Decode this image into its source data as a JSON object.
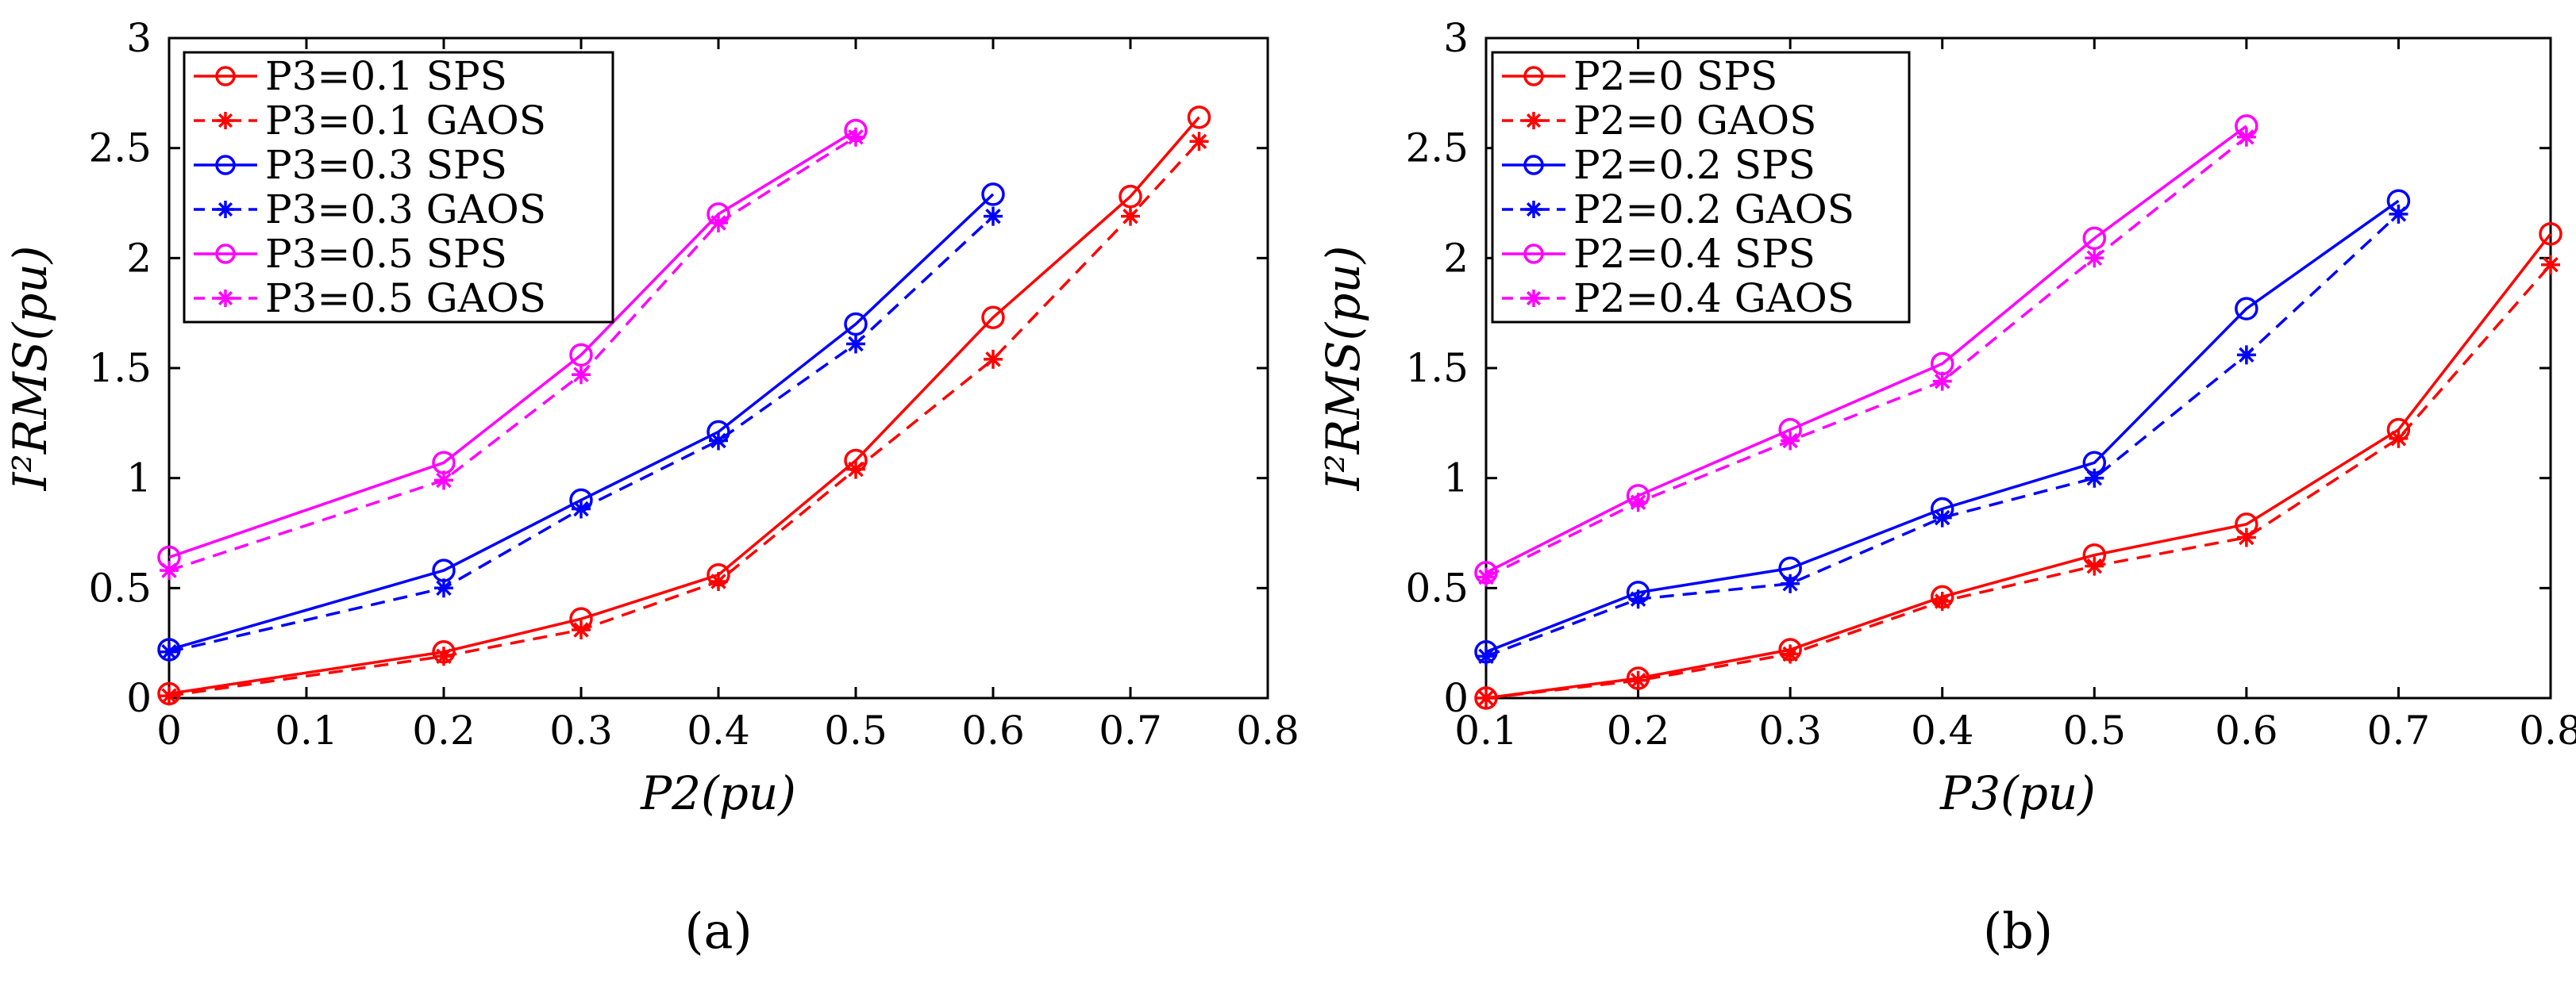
{
  "chart_data": [
    {
      "type": "line",
      "panel_label": "(a)",
      "xlabel": "P2(pu)",
      "ylabel": "I²RMS(pu)",
      "xlim": [
        0,
        0.8
      ],
      "ylim": [
        0,
        3
      ],
      "xticks": [
        "0",
        "0.1",
        "0.2",
        "0.3",
        "0.4",
        "0.5",
        "0.6",
        "0.7",
        "0.8"
      ],
      "yticks": [
        "0",
        "0.5",
        "1",
        "1.5",
        "2",
        "2.5",
        "3"
      ],
      "grid": false,
      "legend_position": "top-left",
      "series": [
        {
          "name": "P3=0.1  SPS",
          "color": "#ff0000",
          "dash": "solid",
          "marker": "circle",
          "x": [
            0,
            0.2,
            0.3,
            0.4,
            0.5,
            0.6,
            0.7,
            0.75
          ],
          "y": [
            0.02,
            0.21,
            0.36,
            0.56,
            1.08,
            1.73,
            2.28,
            2.64
          ]
        },
        {
          "name": "P3=0.1  GAOS",
          "color": "#ff0000",
          "dash": "dashed",
          "marker": "star",
          "x": [
            0,
            0.2,
            0.3,
            0.4,
            0.5,
            0.6,
            0.7,
            0.75
          ],
          "y": [
            0.01,
            0.19,
            0.31,
            0.53,
            1.04,
            1.54,
            2.19,
            2.53
          ]
        },
        {
          "name": "P3=0.3  SPS",
          "color": "#0000ff",
          "dash": "solid",
          "marker": "circle",
          "x": [
            0,
            0.2,
            0.3,
            0.4,
            0.5,
            0.6
          ],
          "y": [
            0.22,
            0.58,
            0.9,
            1.21,
            1.7,
            2.29
          ]
        },
        {
          "name": "P3=0.3  GAOS",
          "color": "#0000ff",
          "dash": "dashed",
          "marker": "star",
          "x": [
            0,
            0.2,
            0.3,
            0.4,
            0.5,
            0.6
          ],
          "y": [
            0.21,
            0.5,
            0.86,
            1.17,
            1.61,
            2.19
          ]
        },
        {
          "name": "P3=0.5  SPS",
          "color": "#ff00ff",
          "dash": "solid",
          "marker": "circle",
          "x": [
            0,
            0.2,
            0.3,
            0.4,
            0.5
          ],
          "y": [
            0.64,
            1.07,
            1.56,
            2.2,
            2.58
          ]
        },
        {
          "name": "P3=0.5  GAOS",
          "color": "#ff00ff",
          "dash": "dashed",
          "marker": "star",
          "x": [
            0,
            0.2,
            0.3,
            0.4,
            0.5
          ],
          "y": [
            0.58,
            0.99,
            1.47,
            2.16,
            2.55
          ]
        }
      ]
    },
    {
      "type": "line",
      "panel_label": "(b)",
      "xlabel": "P3(pu)",
      "ylabel": "I²RMS(pu)",
      "xlim": [
        0.1,
        0.8
      ],
      "ylim": [
        0,
        3
      ],
      "xticks": [
        "0.1",
        "0.2",
        "0.3",
        "0.4",
        "0.5",
        "0.6",
        "0.7",
        "0.8"
      ],
      "yticks": [
        "0",
        "0.5",
        "1",
        "1.5",
        "2",
        "2.5",
        "3"
      ],
      "grid": false,
      "legend_position": "top-left",
      "series": [
        {
          "name": "P2=0  SPS",
          "color": "#ff0000",
          "dash": "solid",
          "marker": "circle",
          "x": [
            0.1,
            0.2,
            0.3,
            0.4,
            0.5,
            0.6,
            0.7,
            0.8
          ],
          "y": [
            0.0,
            0.09,
            0.22,
            0.46,
            0.65,
            0.79,
            1.22,
            2.11
          ]
        },
        {
          "name": "P2=0  GAOS",
          "color": "#ff0000",
          "dash": "dashed",
          "marker": "star",
          "x": [
            0.1,
            0.2,
            0.3,
            0.4,
            0.5,
            0.6,
            0.7,
            0.8
          ],
          "y": [
            0.0,
            0.08,
            0.2,
            0.44,
            0.6,
            0.73,
            1.18,
            1.97
          ]
        },
        {
          "name": "P2=0.2  SPS",
          "color": "#0000ff",
          "dash": "solid",
          "marker": "circle",
          "x": [
            0.1,
            0.2,
            0.3,
            0.4,
            0.5,
            0.6,
            0.7
          ],
          "y": [
            0.21,
            0.48,
            0.59,
            0.86,
            1.07,
            1.77,
            2.26
          ]
        },
        {
          "name": "P2=0.2  GAOS",
          "color": "#0000ff",
          "dash": "dashed",
          "marker": "star",
          "x": [
            0.1,
            0.2,
            0.3,
            0.4,
            0.5,
            0.6,
            0.7
          ],
          "y": [
            0.19,
            0.45,
            0.52,
            0.82,
            1.0,
            1.56,
            2.2
          ]
        },
        {
          "name": "P2=0.4  SPS",
          "color": "#ff00ff",
          "dash": "solid",
          "marker": "circle",
          "x": [
            0.1,
            0.2,
            0.3,
            0.4,
            0.5,
            0.6
          ],
          "y": [
            0.57,
            0.92,
            1.22,
            1.52,
            2.09,
            2.6
          ]
        },
        {
          "name": "P2=0.4  GAOS",
          "color": "#ff00ff",
          "dash": "dashed",
          "marker": "star",
          "x": [
            0.1,
            0.2,
            0.3,
            0.4,
            0.5,
            0.6
          ],
          "y": [
            0.55,
            0.89,
            1.17,
            1.44,
            2.0,
            2.55
          ]
        }
      ]
    }
  ]
}
